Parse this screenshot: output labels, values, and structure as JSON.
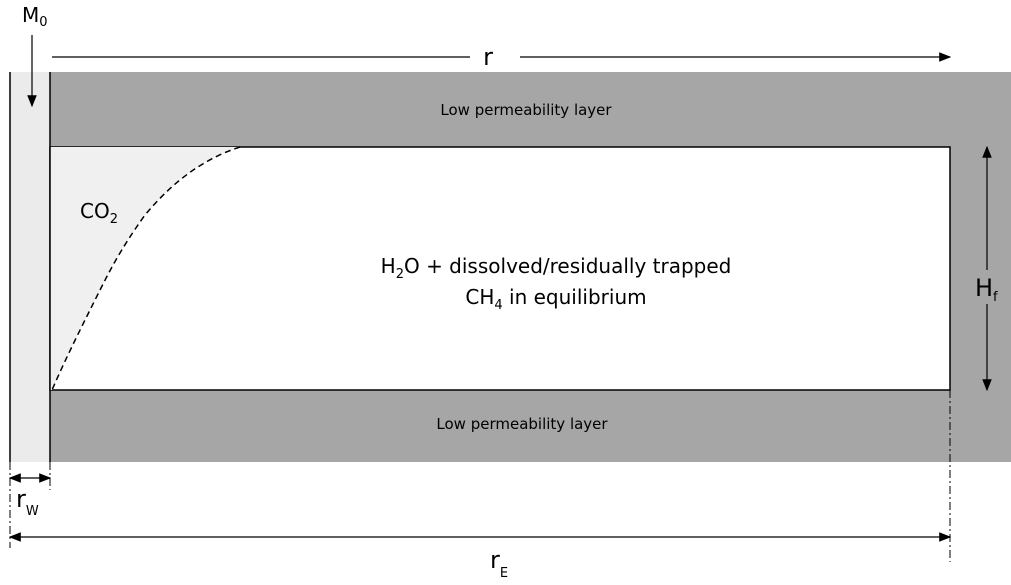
{
  "injection": {
    "label": "M",
    "sub": "0"
  },
  "radius": "r",
  "top_layer": "Low permeability layer",
  "bottom_layer": "Low permeability layer",
  "plume": {
    "label": "CO",
    "sub": "2"
  },
  "aquifer": {
    "line1": [
      "H",
      "2",
      "O + dissolved/residually trapped"
    ],
    "line2": [
      "CH",
      "4",
      " in equilibrium"
    ]
  },
  "thickness": {
    "label": "H",
    "sub": "f"
  },
  "well_radius": {
    "label": "r",
    "sub": "W"
  },
  "outer_radius": {
    "label": "r",
    "sub": "E"
  }
}
